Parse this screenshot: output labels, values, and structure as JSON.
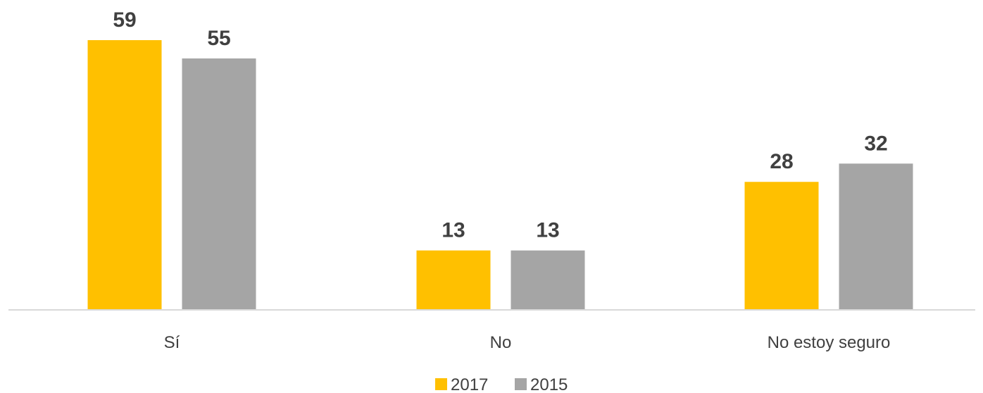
{
  "chart_data": {
    "type": "bar",
    "categories": [
      "Sí",
      "No",
      "No estoy seguro"
    ],
    "series": [
      {
        "name": "2017",
        "values": [
          59,
          13,
          28
        ],
        "color": "#FFC000"
      },
      {
        "name": "2015",
        "values": [
          55,
          13,
          32
        ],
        "color": "#A5A5A5"
      }
    ],
    "ylim": [
      0,
      59
    ],
    "grid": false,
    "data_labels": true,
    "legend_position": "bottom"
  },
  "colors": {
    "axis": "#D9D9D9",
    "text": "#404040"
  }
}
